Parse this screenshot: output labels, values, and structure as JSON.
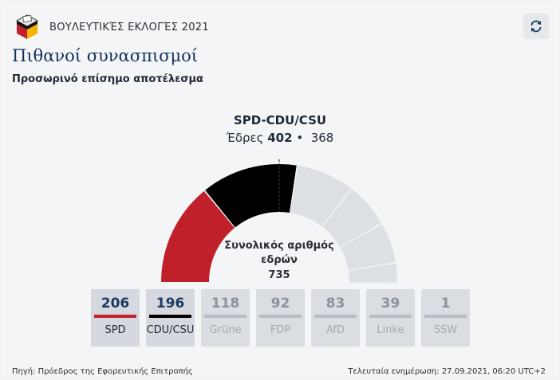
{
  "header": {
    "title": "ΒΟΥΛΕΥΤΙΚΈΣ ΕΚΛΟΓΈΣ 2021",
    "logo_icon": "ballot-box-icon",
    "refresh_icon": "refresh-icon"
  },
  "page_title": "Πιθανοί συνασπισμοί",
  "subtitle": "Προσωρινό επίσημο αποτέλεσμα",
  "coalition": {
    "name": "SPD-CDU/CSU",
    "seats_label": "Έδρες",
    "seats": "402",
    "separator": "•",
    "majority": "368"
  },
  "total": {
    "label": "Συνολικός αριθμός εδρών",
    "value": "735"
  },
  "parties": [
    {
      "name": "SPD",
      "seats": "206",
      "color": "#c0202a",
      "selected": true
    },
    {
      "name": "CDU/CSU",
      "seats": "196",
      "color": "#000000",
      "selected": true
    },
    {
      "name": "Grüne",
      "seats": "118",
      "color": "#b7bcc4",
      "selected": false
    },
    {
      "name": "FDP",
      "seats": "92",
      "color": "#b7bcc4",
      "selected": false
    },
    {
      "name": "AfD",
      "seats": "83",
      "color": "#b7bcc4",
      "selected": false
    },
    {
      "name": "Linke",
      "seats": "39",
      "color": "#b7bcc4",
      "selected": false
    },
    {
      "name": "SSW",
      "seats": "1",
      "color": "#b7bcc4",
      "selected": false
    }
  ],
  "footer": {
    "source": "Πηγή: Πρόεδρος της Εφορευτικής Επιτροπής",
    "updated": "Τελευταία ενημέρωση: 27.09.2021, 06:20 UTC+2"
  },
  "colors": {
    "spd": "#c0202a",
    "cdu": "#000000",
    "inactive_segment": "#dcdfe3",
    "title": "#14325e"
  }
}
